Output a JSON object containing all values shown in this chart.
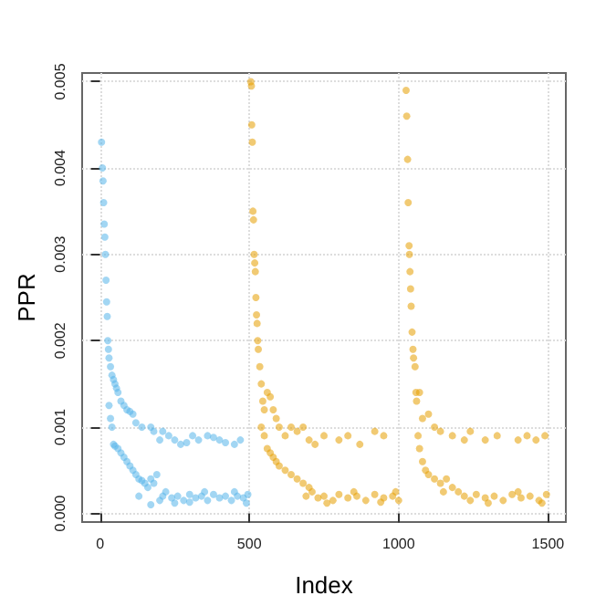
{
  "chart_data": {
    "type": "scatter",
    "xlabel": "Index",
    "ylabel": "PPR",
    "xlim": [
      -60,
      1560
    ],
    "xticks": [
      0,
      500,
      1000,
      1500
    ],
    "ylim": [
      -0.0001,
      0.0051
    ],
    "yticks": [
      {
        "value": 0,
        "label": "0.000"
      },
      {
        "value": 0.001,
        "label": "0.001"
      },
      {
        "value": 0.002,
        "label": "0.002"
      },
      {
        "value": 0.003,
        "label": "0.003"
      },
      {
        "value": 0.004,
        "label": "0.004"
      },
      {
        "value": 0.005,
        "label": "0.005"
      }
    ],
    "grid": true,
    "marker": "circle",
    "series": [
      {
        "color": "#56b4e9",
        "x": [
          5,
          8,
          10,
          12,
          14,
          16,
          18,
          20,
          22,
          24,
          26,
          28,
          30,
          35,
          40,
          45,
          50,
          55,
          60,
          70,
          80,
          90,
          100,
          110,
          30,
          35,
          40,
          45,
          50,
          60,
          70,
          80,
          90,
          100,
          110,
          120,
          130,
          140,
          150,
          160,
          170,
          180,
          190,
          130,
          170,
          120,
          140,
          170,
          180,
          200,
          210,
          230,
          250,
          270,
          290,
          310,
          330,
          360,
          380,
          400,
          420,
          450,
          470,
          200,
          210,
          220,
          240,
          260,
          280,
          300,
          320,
          340,
          360,
          380,
          400,
          420,
          440,
          460,
          480,
          495,
          250,
          300,
          350,
          450,
          490
        ],
        "values": [
          0.0043,
          0.004,
          0.00385,
          0.0036,
          0.00335,
          0.0032,
          0.003,
          0.0027,
          0.00245,
          0.00228,
          0.002,
          0.0019,
          0.0018,
          0.0017,
          0.0016,
          0.00155,
          0.0015,
          0.00145,
          0.0014,
          0.0013,
          0.00125,
          0.0012,
          0.00118,
          0.00115,
          0.00125,
          0.0011,
          0.001,
          0.0008,
          0.00078,
          0.00075,
          0.0007,
          0.00065,
          0.0006,
          0.00055,
          0.0005,
          0.00045,
          0.0004,
          0.00038,
          0.00035,
          0.0003,
          0.0004,
          0.00035,
          0.00045,
          0.0002,
          0.0001,
          0.00105,
          0.001,
          0.001,
          0.00095,
          0.00085,
          0.00095,
          0.0009,
          0.00085,
          0.0008,
          0.00082,
          0.0009,
          0.00085,
          0.0009,
          0.00088,
          0.00085,
          0.00082,
          0.0008,
          0.00085,
          0.00015,
          0.0002,
          0.00025,
          0.00018,
          0.0002,
          0.00015,
          0.00022,
          0.00018,
          0.0002,
          0.00015,
          0.00022,
          0.00018,
          0.0002,
          0.00015,
          0.0002,
          0.00018,
          0.00022,
          0.00012,
          0.00013,
          0.00025,
          0.00025,
          0.00012
        ]
      },
      {
        "color": "#e69f00",
        "x": [
          505,
          507,
          508,
          510,
          512,
          514,
          516,
          518,
          520,
          522,
          524,
          526,
          528,
          530,
          535,
          540,
          545,
          550,
          560,
          570,
          580,
          590,
          600,
          620,
          640,
          660,
          680,
          700,
          720,
          750,
          800,
          830,
          870,
          920,
          950,
          540,
          550,
          560,
          570,
          580,
          590,
          600,
          620,
          640,
          660,
          680,
          700,
          690,
          710,
          730,
          750,
          780,
          800,
          830,
          860,
          890,
          920,
          950,
          980,
          1000,
          760,
          850,
          940,
          990,
          1025,
          1027,
          1030,
          1032,
          1035,
          1036,
          1038,
          1040,
          1042,
          1045,
          1048,
          1050,
          1055,
          1058,
          1060,
          1070,
          1080,
          1100,
          1120,
          1140,
          1180,
          1220,
          1240,
          1290,
          1330,
          1400,
          1430,
          1460,
          1490,
          1065,
          1070,
          1080,
          1090,
          1100,
          1120,
          1140,
          1160,
          1180,
          1200,
          1150,
          1220,
          1240,
          1260,
          1290,
          1320,
          1350,
          1380,
          1410,
          1440,
          1470,
          1495,
          1300,
          1400,
          1480
        ],
        "values": [
          0.005,
          0.00495,
          0.0045,
          0.0043,
          0.0035,
          0.0034,
          0.003,
          0.0029,
          0.0028,
          0.0025,
          0.0023,
          0.0022,
          0.002,
          0.0019,
          0.0017,
          0.0015,
          0.0013,
          0.0012,
          0.0014,
          0.00135,
          0.0012,
          0.0011,
          0.001,
          0.0009,
          0.001,
          0.00095,
          0.001,
          0.00085,
          0.0008,
          0.0009,
          0.00085,
          0.0009,
          0.0008,
          0.00095,
          0.0009,
          0.001,
          0.0009,
          0.00075,
          0.0007,
          0.00065,
          0.0006,
          0.00055,
          0.0005,
          0.00045,
          0.0004,
          0.00035,
          0.0003,
          0.0002,
          0.00025,
          0.00018,
          0.0002,
          0.00015,
          0.00022,
          0.00018,
          0.0002,
          0.00015,
          0.00022,
          0.00018,
          0.0002,
          0.00015,
          0.00012,
          0.00025,
          0.00013,
          0.00025,
          0.0049,
          0.0046,
          0.0041,
          0.0036,
          0.0031,
          0.003,
          0.0028,
          0.0026,
          0.0024,
          0.0021,
          0.0019,
          0.0018,
          0.0017,
          0.0014,
          0.0013,
          0.0014,
          0.0011,
          0.00115,
          0.001,
          0.00095,
          0.0009,
          0.00085,
          0.00095,
          0.00085,
          0.0009,
          0.00085,
          0.0009,
          0.00085,
          0.0009,
          0.0009,
          0.00075,
          0.0006,
          0.0005,
          0.00045,
          0.0004,
          0.00035,
          0.0004,
          0.0003,
          0.00025,
          0.00025,
          0.0002,
          0.00015,
          0.00022,
          0.00018,
          0.0002,
          0.00015,
          0.00022,
          0.00018,
          0.0002,
          0.00015,
          0.00022,
          0.00012,
          0.00025,
          0.00012
        ]
      }
    ]
  }
}
